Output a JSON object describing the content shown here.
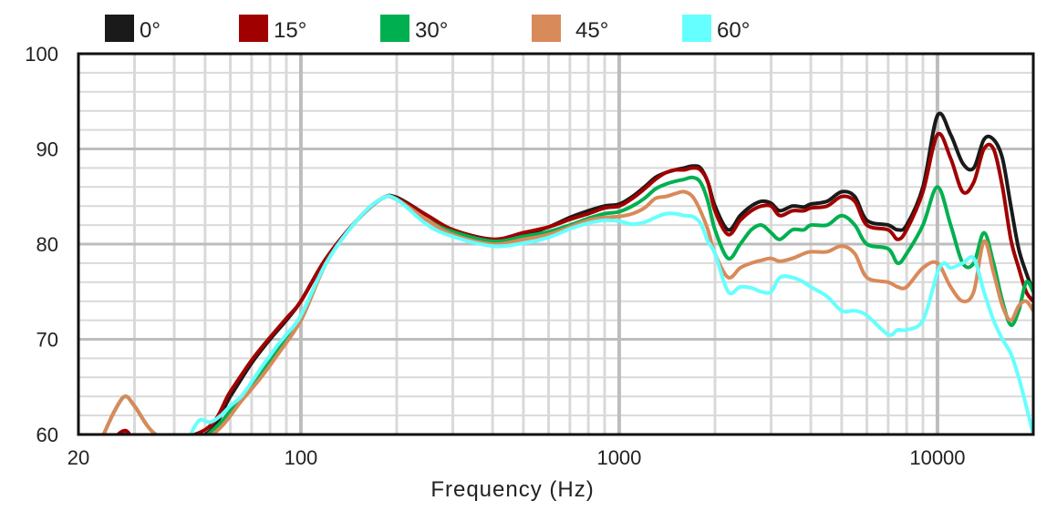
{
  "chart_data": {
    "type": "line",
    "title": "",
    "xlabel": "Frequency (Hz)",
    "ylabel": "",
    "xscale": "log",
    "xlim": [
      20,
      20000
    ],
    "ylim": [
      60,
      100
    ],
    "xticks": [
      20,
      100,
      1000,
      10000
    ],
    "xtick_labels": [
      "20",
      "100",
      "1000",
      "10000"
    ],
    "yticks": [
      60,
      70,
      80,
      90,
      100
    ],
    "ytick_labels": [
      "60",
      "70",
      "80",
      "90",
      "100"
    ],
    "grid": true,
    "legend_position": "top",
    "series": [
      {
        "name": "0°",
        "color": "#1a1a1a",
        "x": [
          25,
          28,
          32,
          50,
          60,
          70,
          80,
          90,
          100,
          120,
          150,
          180,
          200,
          250,
          300,
          400,
          500,
          600,
          700,
          800,
          900,
          1000,
          1100,
          1200,
          1300,
          1400,
          1500,
          1600,
          1700,
          1800,
          1900,
          2000,
          2200,
          2400,
          2600,
          2800,
          3000,
          3200,
          3500,
          3800,
          4000,
          4500,
          5000,
          5500,
          6000,
          7000,
          7500,
          8000,
          9000,
          10000,
          11000,
          12000,
          13000,
          14000,
          15000,
          16000,
          17000,
          18000,
          19000,
          20000
        ],
        "y": [
          59,
          60,
          59,
          60,
          64,
          67.5,
          70,
          72,
          74,
          78.5,
          82.5,
          84.8,
          84.9,
          83,
          81.5,
          80.5,
          81,
          81.8,
          82.8,
          83.5,
          84,
          84.2,
          85,
          86,
          87,
          87.5,
          87.8,
          88,
          88.2,
          88,
          86.5,
          84,
          81.5,
          83,
          84,
          84.5,
          84.3,
          83.5,
          84,
          83.9,
          84.2,
          84.5,
          85.5,
          85,
          82.5,
          82,
          81.5,
          82,
          86,
          93.5,
          91.5,
          88.5,
          88,
          91,
          91,
          89,
          84,
          79.5,
          77,
          75
        ]
      },
      {
        "name": "15°",
        "color": "#a00000",
        "x": [
          25,
          28,
          32,
          50,
          60,
          70,
          80,
          90,
          100,
          120,
          150,
          180,
          200,
          250,
          300,
          400,
          500,
          600,
          700,
          800,
          900,
          1000,
          1100,
          1200,
          1300,
          1400,
          1500,
          1600,
          1700,
          1800,
          1900,
          2000,
          2200,
          2400,
          2600,
          2800,
          3000,
          3200,
          3500,
          3800,
          4000,
          4500,
          5000,
          5500,
          6000,
          7000,
          7500,
          8000,
          9000,
          10000,
          11000,
          12000,
          13000,
          14000,
          15000,
          16000,
          17000,
          18000,
          19000,
          20000
        ],
        "y": [
          59,
          60.4,
          59,
          60.5,
          64.5,
          67.8,
          70.2,
          72.2,
          74,
          78.5,
          82.5,
          84.8,
          84.8,
          83,
          81.5,
          80.5,
          81.2,
          81.8,
          82.6,
          83.2,
          83.8,
          84,
          84.8,
          85.8,
          86.8,
          87.5,
          87.8,
          87.8,
          88,
          87.8,
          86.5,
          83.5,
          81,
          82.5,
          83.5,
          84,
          84,
          83,
          83.5,
          83.5,
          83.8,
          84,
          85,
          84.5,
          82,
          81.5,
          80.5,
          81.5,
          85.5,
          91.5,
          89,
          85.5,
          86.5,
          90,
          90,
          86,
          80.5,
          77.5,
          75,
          74
        ]
      },
      {
        "name": "30°",
        "color": "#00b050",
        "x": [
          24,
          26,
          28,
          30,
          35,
          45,
          55,
          65,
          75,
          85,
          100,
          120,
          150,
          180,
          200,
          250,
          300,
          400,
          500,
          600,
          700,
          800,
          900,
          1000,
          1100,
          1200,
          1300,
          1400,
          1500,
          1600,
          1700,
          1800,
          1900,
          2000,
          2200,
          2400,
          2600,
          2800,
          3000,
          3200,
          3500,
          3800,
          4000,
          4500,
          5000,
          5500,
          6000,
          7000,
          7500,
          8000,
          9000,
          10000,
          11000,
          12000,
          13000,
          14000,
          15000,
          16000,
          17000,
          18000,
          19000,
          20000
        ],
        "y": [
          60,
          62.5,
          64,
          63,
          60,
          59,
          61,
          64,
          66.5,
          69,
          72,
          78,
          82.5,
          84.8,
          84.7,
          82.5,
          81.3,
          80.3,
          80.8,
          81.3,
          82,
          82.7,
          83.2,
          83.4,
          84,
          84.8,
          85.8,
          86.3,
          86.6,
          86.8,
          87,
          86.5,
          84.5,
          81.5,
          78.5,
          80,
          81.5,
          82,
          81.2,
          80.5,
          81.5,
          81.5,
          82,
          82,
          83,
          82,
          80,
          79.5,
          78,
          79,
          82,
          86,
          82,
          78,
          78,
          81.2,
          78,
          74,
          71.5,
          73,
          76,
          75
        ]
      },
      {
        "name": "45°",
        "color": "#d98a5a",
        "x": [
          24,
          26,
          28,
          30,
          35,
          45,
          55,
          65,
          75,
          85,
          100,
          120,
          150,
          180,
          200,
          250,
          300,
          400,
          500,
          600,
          700,
          800,
          900,
          1000,
          1100,
          1200,
          1300,
          1400,
          1500,
          1600,
          1700,
          1800,
          1900,
          2000,
          2200,
          2400,
          2600,
          2800,
          3000,
          3200,
          3500,
          3800,
          4000,
          4500,
          5000,
          5500,
          6000,
          7000,
          7500,
          8000,
          9000,
          10000,
          11000,
          12000,
          13000,
          14000,
          15000,
          16000,
          17000,
          18000,
          19000,
          20000
        ],
        "y": [
          60,
          62.5,
          64,
          63,
          60,
          59,
          60.5,
          63.5,
          66,
          68.5,
          72,
          78,
          82.5,
          84.8,
          84.7,
          82.5,
          81,
          80,
          80.5,
          81,
          81.8,
          82.5,
          82.8,
          82.9,
          83.2,
          83.8,
          84.8,
          85,
          85.3,
          85.5,
          85,
          83.5,
          81.5,
          79,
          76.5,
          77.5,
          78,
          78.3,
          78.5,
          78.2,
          78.5,
          79,
          79.2,
          79.2,
          79.8,
          79,
          76.5,
          76,
          75.5,
          75.5,
          77.5,
          78,
          75.5,
          74,
          75,
          80.3,
          77,
          73.5,
          72,
          73.5,
          74,
          73
        ]
      },
      {
        "name": "60°",
        "color": "#66ffff",
        "x": [
          45,
          48,
          52,
          56,
          60,
          65,
          70,
          75,
          80,
          85,
          90,
          100,
          120,
          150,
          180,
          200,
          250,
          300,
          400,
          500,
          600,
          700,
          800,
          900,
          1000,
          1100,
          1200,
          1300,
          1400,
          1500,
          1600,
          1700,
          1800,
          1900,
          2000,
          2200,
          2400,
          2600,
          2800,
          3000,
          3200,
          3500,
          3800,
          4000,
          4500,
          5000,
          5500,
          6000,
          7000,
          7500,
          8000,
          9000,
          10000,
          10500,
          11000,
          12000,
          13000,
          14000,
          15000,
          16000,
          17000,
          18000,
          19000,
          20000
        ],
        "y": [
          60,
          61.5,
          61.3,
          62,
          63,
          64,
          65.5,
          67,
          68.3,
          69.5,
          70.5,
          72.5,
          78,
          82.5,
          84.8,
          84.7,
          82,
          80.8,
          79.8,
          80.1,
          80.7,
          81.6,
          82.2,
          82.5,
          82.4,
          82.1,
          82.3,
          82.8,
          83.2,
          83.2,
          83,
          82.9,
          82.2,
          80.3,
          79,
          75,
          75.5,
          75.4,
          75,
          75,
          76.5,
          76.5,
          76,
          75.5,
          74.5,
          73,
          73,
          72.5,
          70.5,
          71,
          71,
          72,
          77,
          78,
          77.5,
          78,
          78.5,
          75,
          72,
          70,
          68.5,
          66,
          63,
          60
        ]
      }
    ]
  }
}
